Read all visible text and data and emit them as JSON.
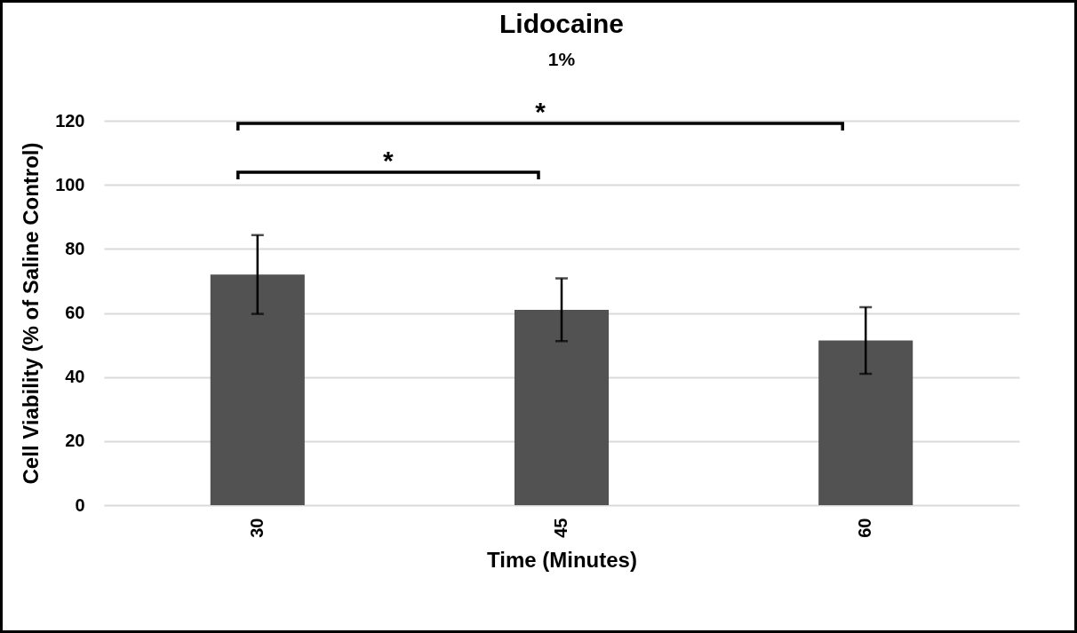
{
  "chart_data": {
    "type": "bar",
    "title": "Lidocaine",
    "subtitle": "1%",
    "xlabel": "Time (Minutes)",
    "ylabel": "Cell Viability (% of Saline Control)",
    "categories": [
      "30",
      "45",
      "60"
    ],
    "values": [
      72,
      61,
      51.4
    ],
    "errors": [
      12.3,
      9.8,
      10.4
    ],
    "color": "#525252",
    "ylim": [
      0,
      120
    ],
    "yticks": [
      0,
      20,
      40,
      60,
      80,
      100,
      120
    ],
    "grid": "y",
    "annotations": [
      "*",
      "*"
    ]
  }
}
